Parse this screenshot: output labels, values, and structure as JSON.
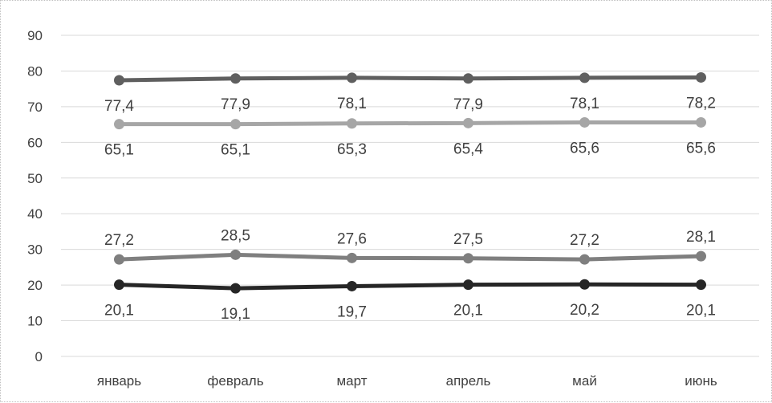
{
  "chart_data": {
    "type": "line",
    "title": "",
    "xlabel": "",
    "ylabel": "",
    "ylim": [
      0,
      90
    ],
    "ytick_step": 10,
    "grid": true,
    "legend": "none",
    "categories": [
      "январь",
      "февраль",
      "март",
      "апрель",
      "май",
      "июнь"
    ],
    "series": [
      {
        "values": [
          77.4,
          77.9,
          78.1,
          77.9,
          78.1,
          78.2
        ],
        "labels": [
          "77,4",
          "77,9",
          "78,1",
          "77,9",
          "78,1",
          "78,2"
        ],
        "color": "#5f5f5f",
        "label_position": "below"
      },
      {
        "values": [
          65.1,
          65.1,
          65.3,
          65.4,
          65.6,
          65.6
        ],
        "labels": [
          "65,1",
          "65,1",
          "65,3",
          "65,4",
          "65,6",
          "65,6"
        ],
        "color": "#a6a6a6",
        "label_position": "below"
      },
      {
        "values": [
          27.2,
          28.5,
          27.6,
          27.5,
          27.2,
          28.1
        ],
        "labels": [
          "27,2",
          "28,5",
          "27,6",
          "27,5",
          "27,2",
          "28,1"
        ],
        "color": "#7f7f7f",
        "label_position": "above"
      },
      {
        "values": [
          20.1,
          19.1,
          19.7,
          20.1,
          20.2,
          20.1
        ],
        "labels": [
          "20,1",
          "19,1",
          "19,7",
          "20,1",
          "20,2",
          "20,1"
        ],
        "color": "#262626",
        "label_position": "below"
      }
    ],
    "gridline_color": "#d9d9d9"
  }
}
